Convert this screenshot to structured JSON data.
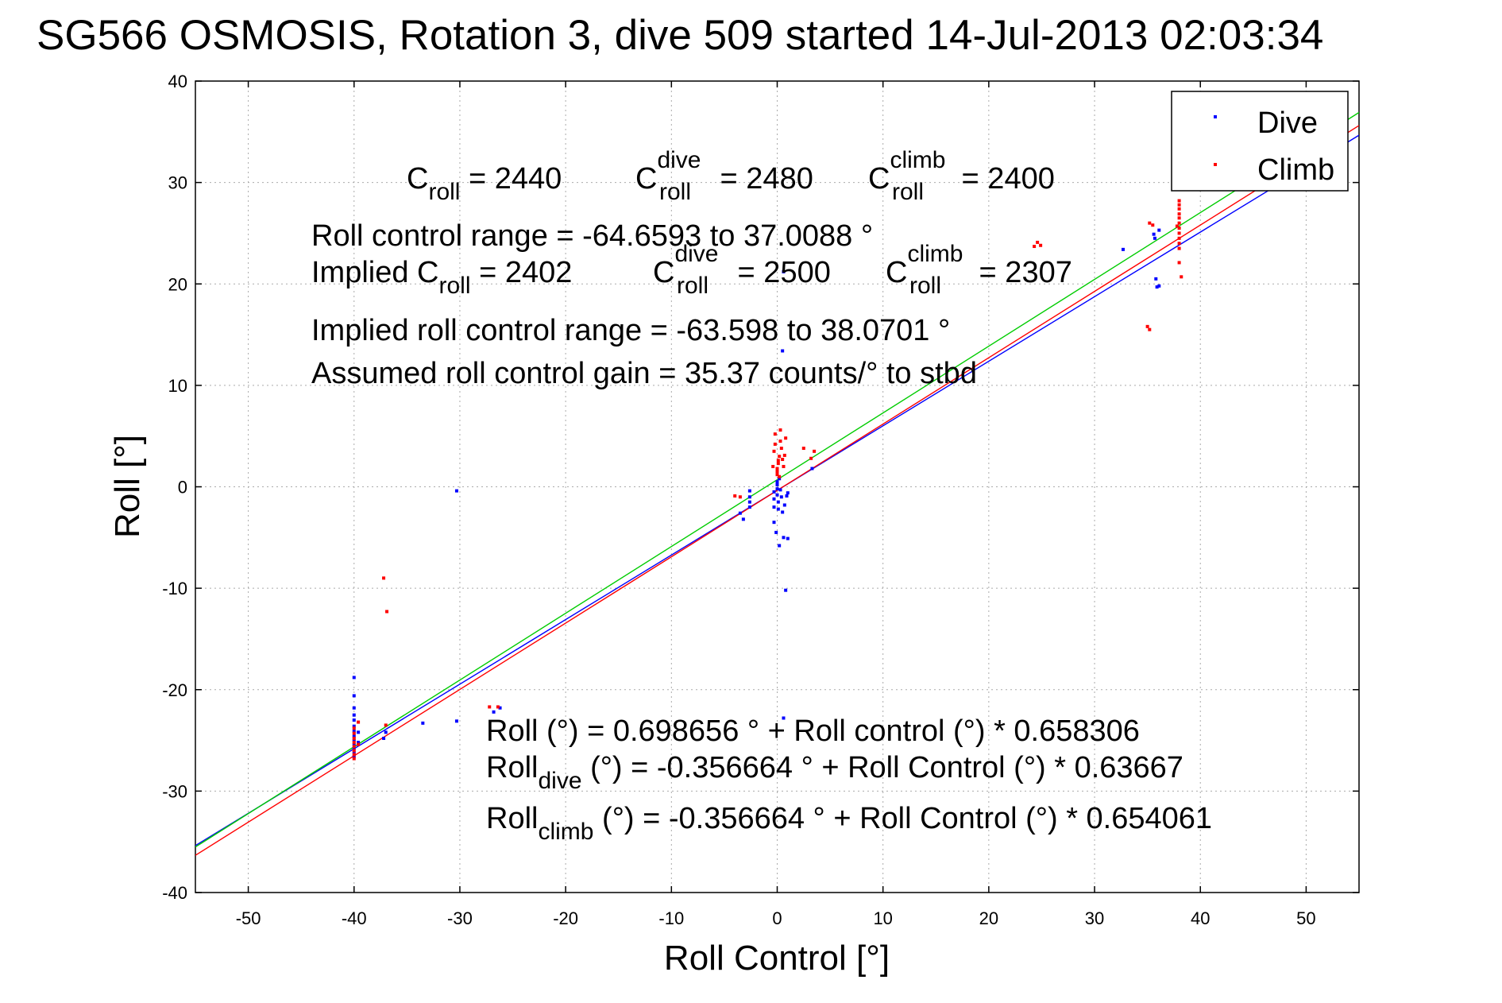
{
  "title": "SG566 OSMOSIS, Rotation 3, dive 509 started 14-Jul-2013 02:03:34",
  "colors": {
    "dive": "#0000ff",
    "climb": "#ff0000",
    "combined_fit": "#00cc00"
  },
  "legend": {
    "dive": "Dive",
    "climb": "Climb"
  },
  "annotations": {
    "c_roll": {
      "base": "C",
      "sub": "roll",
      "rest": " = 2440"
    },
    "c_roll_dive": {
      "base": "C",
      "sup": "dive",
      "sub": "roll",
      "rest": " = 2480"
    },
    "c_roll_climb": {
      "base": "C",
      "sup": "climb",
      "sub": "roll",
      "rest": " = 2400"
    },
    "range": "Roll control range = -64.6593 to 37.0088 °",
    "implied_c": {
      "base": "Implied C",
      "sub": "roll",
      "rest": " = 2402"
    },
    "implied_dive": {
      "base": "C",
      "sup": "dive",
      "sub": "roll",
      "rest": " = 2500"
    },
    "implied_climb": {
      "base": "C",
      "sup": "climb",
      "sub": "roll",
      "rest": " = 2307"
    },
    "implied_range": "Implied roll control range = -63.598 to 38.0701 °",
    "gain": "Assumed roll control gain = 35.37 counts/° to stbd",
    "fit_all": "Roll (°) = 0.698656 ° + Roll control (°) * 0.658306",
    "fit_dive": {
      "base": "Roll",
      "sub": "dive",
      "rest": " (°) = -0.356664 ° + Roll Control (°) * 0.63667"
    },
    "fit_climb": {
      "base": "Roll",
      "sub": "climb",
      "rest": " (°) = -0.356664 ° + Roll Control (°) * 0.654061"
    }
  },
  "chart_data": {
    "type": "scatter",
    "title": "SG566 OSMOSIS, Rotation 3, dive 509 started 14-Jul-2013 02:03:34",
    "xlabel": "Roll Control [°]",
    "ylabel": "Roll [°]",
    "xlim": [
      -55,
      55
    ],
    "ylim": [
      -40,
      40
    ],
    "x_ticks": [
      -50,
      -40,
      -30,
      -20,
      -10,
      0,
      10,
      20,
      30,
      40,
      50
    ],
    "y_ticks": [
      -40,
      -30,
      -20,
      -10,
      0,
      10,
      20,
      30,
      40
    ],
    "grid": true,
    "legend_position": "top-right",
    "series": [
      {
        "name": "Dive",
        "color": "#0000ff",
        "points": [
          [
            -40,
            -18.8
          ],
          [
            -40,
            -20.6
          ],
          [
            -40,
            -21.8
          ],
          [
            -40,
            -22.5
          ],
          [
            -40,
            -23.0
          ],
          [
            -40,
            -23.6
          ],
          [
            -40,
            -24.1
          ],
          [
            -40,
            -24.6
          ],
          [
            -40,
            -25.0
          ],
          [
            -40,
            -25.4
          ],
          [
            -40,
            -25.8
          ],
          [
            -40,
            -26.2
          ],
          [
            -40,
            -26.6
          ],
          [
            -39.6,
            -25.2
          ],
          [
            -39.6,
            -24.2
          ],
          [
            -37,
            -24.2
          ],
          [
            -37.2,
            -24.8
          ],
          [
            -33.5,
            -23.3
          ],
          [
            -30.3,
            -0.4
          ],
          [
            -30.3,
            -23.1
          ],
          [
            -26.8,
            -22.2
          ],
          [
            -26.2,
            -21.8
          ],
          [
            -3.5,
            -2.6
          ],
          [
            -3.2,
            -3.2
          ],
          [
            -2.6,
            -0.4
          ],
          [
            -2.6,
            -1.0
          ],
          [
            -2.6,
            -1.5
          ],
          [
            -2.6,
            -2.0
          ],
          [
            -0.3,
            -0.5
          ],
          [
            -0.3,
            -1.2
          ],
          [
            -0.3,
            -2.0
          ],
          [
            -0.3,
            -3.5
          ],
          [
            -0.1,
            -4.5
          ],
          [
            0,
            -0.2
          ],
          [
            0,
            0.5
          ],
          [
            0,
            0.2
          ],
          [
            0,
            -0.8
          ],
          [
            0.1,
            -1.5
          ],
          [
            0.1,
            -2.2
          ],
          [
            0.2,
            0.8
          ],
          [
            0.3,
            -0.3
          ],
          [
            0.4,
            -1.0
          ],
          [
            0.5,
            -2.5
          ],
          [
            0.2,
            -5.8
          ],
          [
            0.6,
            -5.0
          ],
          [
            0.7,
            -1.8
          ],
          [
            0.9,
            -0.9
          ],
          [
            1,
            -0.6
          ],
          [
            1,
            -5.1
          ],
          [
            0.8,
            -10.2
          ],
          [
            0.6,
            -22.8
          ],
          [
            0.6,
            21.2
          ],
          [
            0.5,
            13.4
          ],
          [
            3.3,
            1.8
          ],
          [
            32.7,
            23.4
          ],
          [
            35.6,
            24.9
          ],
          [
            35.7,
            24.5
          ],
          [
            35.8,
            20.5
          ],
          [
            35.9,
            19.7
          ],
          [
            36.1,
            19.8
          ],
          [
            36.1,
            25.3
          ]
        ],
        "fit": {
          "intercept": -0.356664,
          "slope": 0.63667
        }
      },
      {
        "name": "Climb",
        "color": "#ff0000",
        "points": [
          [
            -40,
            -23.8
          ],
          [
            -40,
            -24.3
          ],
          [
            -40,
            -24.8
          ],
          [
            -40,
            -25.2
          ],
          [
            -40,
            -25.6
          ],
          [
            -40,
            -26.0
          ],
          [
            -40,
            -26.4
          ],
          [
            -40,
            -26.8
          ],
          [
            -39.6,
            -23.2
          ],
          [
            -39.6,
            -25.4
          ],
          [
            -37.2,
            -9.0
          ],
          [
            -36.9,
            -12.3
          ],
          [
            -37,
            -23.5
          ],
          [
            -27.2,
            -21.7
          ],
          [
            -26.4,
            -21.7
          ],
          [
            -4,
            -0.9
          ],
          [
            -3.5,
            -1.0
          ],
          [
            -0.4,
            2.0
          ],
          [
            -0.3,
            3.5
          ],
          [
            -0.2,
            4.2
          ],
          [
            -0.2,
            5.2
          ],
          [
            0,
            1.2
          ],
          [
            0,
            1.5
          ],
          [
            0,
            1.8
          ],
          [
            0.1,
            2.3
          ],
          [
            0.1,
            2.6
          ],
          [
            0.2,
            3.0
          ],
          [
            0.2,
            1.0
          ],
          [
            0.3,
            4.5
          ],
          [
            0.3,
            5.6
          ],
          [
            0.4,
            3.8
          ],
          [
            0.5,
            2.7
          ],
          [
            0.6,
            2.0
          ],
          [
            0.7,
            3.1
          ],
          [
            0.8,
            4.8
          ],
          [
            2.5,
            3.8
          ],
          [
            3.2,
            2.8
          ],
          [
            3.5,
            3.5
          ],
          [
            24.3,
            23.7
          ],
          [
            24.6,
            24.1
          ],
          [
            24.9,
            23.8
          ],
          [
            35,
            15.8
          ],
          [
            35.2,
            15.5
          ],
          [
            35.2,
            26.0
          ],
          [
            35.5,
            25.8
          ],
          [
            38,
            28.2
          ],
          [
            38,
            27.8
          ],
          [
            38,
            27.4
          ],
          [
            38,
            26.9
          ],
          [
            38,
            26.5
          ],
          [
            38,
            26.0
          ],
          [
            38,
            25.5
          ],
          [
            38,
            25.0
          ],
          [
            38,
            24.5
          ],
          [
            38,
            24.0
          ],
          [
            38,
            23.5
          ],
          [
            38,
            22.1
          ],
          [
            38.2,
            20.7
          ],
          [
            37.8,
            25.7
          ]
        ],
        "fit": {
          "intercept": -0.356664,
          "slope": 0.654061
        }
      }
    ],
    "combined_fit": {
      "intercept": 0.698656,
      "slope": 0.658306
    }
  }
}
